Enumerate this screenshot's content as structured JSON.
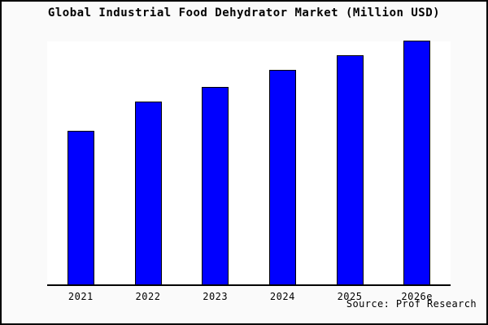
{
  "page": {
    "title": "Global Industrial Food Dehydrator Market (Million USD)",
    "source_label": "Source: Prof Research"
  },
  "colors": {
    "figure_background": "#fafafa",
    "plot_background": "#ffffff",
    "bar_fill": "#0000ff",
    "bar_border": "#000000",
    "axis_line": "#000000",
    "text": "#000000",
    "outer_border": "#000000"
  },
  "chart_data": {
    "type": "bar",
    "title": "Global Industrial Food Dehydrator Market (Million USD)",
    "categories": [
      "2021",
      "2022",
      "2023",
      "2024",
      "2025",
      "2026e"
    ],
    "values": [
      63,
      75,
      81,
      88,
      94,
      100
    ],
    "xlabel": "",
    "ylabel": "",
    "ylim": [
      0,
      100
    ],
    "y_axis_labels_shown": false,
    "grid": false,
    "legend": "none",
    "source": "Source: Prof Research"
  }
}
